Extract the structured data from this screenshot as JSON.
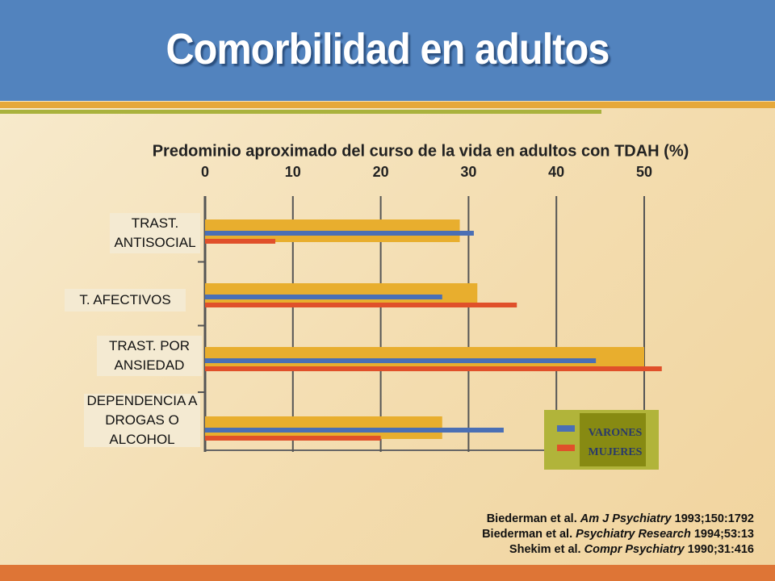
{
  "slide": {
    "title": "Comorbilidad en adultos"
  },
  "chart_data": {
    "type": "hbar",
    "title": "Predominio aproximado del curso de la vida en adultos con TDAH (%)",
    "categories": [
      "TRAST. ANTISOCIAL",
      "T. AFECTIVOS",
      "TRAST. POR ANSIEDAD",
      "DEPENDENCIA A DROGAS O ALCOHOL"
    ],
    "series": [
      {
        "color": "#e8ae2e",
        "values": [
          29,
          31,
          50,
          27
        ]
      },
      {
        "name": "VARONES",
        "color": "#4a6fb5",
        "values": [
          30.6,
          27,
          44.5,
          34
        ]
      },
      {
        "name": "MUJERES",
        "color": "#e0502a",
        "values": [
          8,
          35.5,
          52,
          20
        ]
      }
    ],
    "xlim": [
      0,
      50
    ],
    "xticks": [
      0,
      10,
      20,
      30,
      40,
      50
    ],
    "grid": true,
    "legend": "lower-right"
  },
  "references": [
    {
      "authors": "Biederman et al.",
      "journal": "Am J Psychiatry",
      "detail": "1993;150:1792"
    },
    {
      "authors": "Biederman et al.",
      "journal": "Psychiatry Research",
      "detail": "1994;53:13"
    },
    {
      "authors": "Shekim et al.",
      "journal": "Compr Psychiatry",
      "detail": "1990;31:416"
    }
  ]
}
